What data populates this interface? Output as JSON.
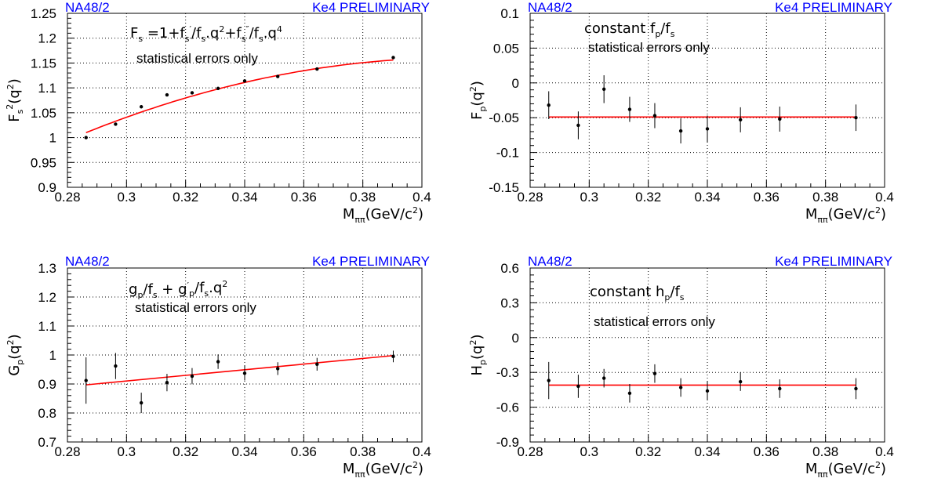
{
  "colors": {
    "fit": "#ff0000",
    "label_blue": "#0000ff",
    "grid": "#000000",
    "points": "#000000"
  },
  "chart_data": [
    {
      "type": "scatter",
      "experiment_label": "NA48/2",
      "status_label": "Ke4 PRELIMINARY",
      "formula": "Fs=1+fs'/fs.q2+fs''/fs.q4",
      "note": "statistical errors only",
      "xlabel": "Mππ(GeV/c2)",
      "ylabel": "Fs2(q2)",
      "xlim": [
        0.28,
        0.4
      ],
      "ylim": [
        0.9,
        1.25
      ],
      "xticks": [
        "0.28",
        "0.3",
        "0.32",
        "0.34",
        "0.36",
        "0.38",
        "0.4"
      ],
      "yticks": [
        "0.9",
        "0.95",
        "1",
        "1.05",
        "1.1",
        "1.15",
        "1.2",
        "1.25"
      ],
      "grid": true,
      "points": {
        "x": [
          0.2863,
          0.2963,
          0.305,
          0.3137,
          0.3222,
          0.331,
          0.34,
          0.3512,
          0.3645,
          0.3903
        ],
        "y": [
          1.0,
          1.027,
          1.062,
          1.086,
          1.09,
          1.099,
          1.114,
          1.123,
          1.138,
          1.161
        ],
        "err": [
          0.003,
          0.003,
          0.003,
          0.003,
          0.003,
          0.003,
          0.003,
          0.003,
          0.003,
          0.003
        ]
      },
      "fit": {
        "type": "quadratic",
        "x": [
          0.2863,
          0.3379,
          0.3903
        ],
        "y": [
          1.01,
          1.108,
          1.156
        ]
      }
    },
    {
      "type": "scatter",
      "experiment_label": "NA48/2",
      "status_label": "Ke4 PRELIMINARY",
      "formula": "constant fp/fs",
      "note": "statistical errors only",
      "xlabel": "Mππ(GeV/c2)",
      "ylabel": "Fp(q2)",
      "xlim": [
        0.28,
        0.4
      ],
      "ylim": [
        -0.15,
        0.1
      ],
      "xticks": [
        "0.28",
        "0.3",
        "0.32",
        "0.34",
        "0.36",
        "0.38",
        "0.4"
      ],
      "yticks": [
        "-0.15",
        "-0.1",
        "-0.05",
        "0",
        "0.05",
        "0.1"
      ],
      "grid": true,
      "points": {
        "x": [
          0.2863,
          0.2963,
          0.305,
          0.3137,
          0.3222,
          0.331,
          0.34,
          0.3512,
          0.3645,
          0.3903
        ],
        "y": [
          -0.032,
          -0.061,
          -0.009,
          -0.038,
          -0.047,
          -0.069,
          -0.066,
          -0.053,
          -0.052,
          -0.05
        ],
        "err": [
          0.02,
          0.02,
          0.02,
          0.018,
          0.018,
          0.018,
          0.019,
          0.018,
          0.018,
          0.019
        ]
      },
      "fit": {
        "type": "constant",
        "x": [
          0.2863,
          0.3903
        ],
        "y": [
          -0.049,
          -0.049
        ]
      }
    },
    {
      "type": "scatter",
      "experiment_label": "NA48/2",
      "status_label": "Ke4 PRELIMINARY",
      "formula": "gp/fs + gp'/fs.q2",
      "note": "statistical errors only",
      "xlabel": "Mππ(GeV/c2)",
      "ylabel": "Gp(q2)",
      "xlim": [
        0.28,
        0.4
      ],
      "ylim": [
        0.7,
        1.3
      ],
      "xticks": [
        "0.28",
        "0.3",
        "0.32",
        "0.34",
        "0.36",
        "0.38",
        "0.4"
      ],
      "yticks": [
        "0.7",
        "0.8",
        "0.9",
        "1",
        "1.1",
        "1.2",
        "1.3"
      ],
      "grid": true,
      "points": {
        "x": [
          0.2863,
          0.2963,
          0.305,
          0.3137,
          0.3222,
          0.331,
          0.34,
          0.3512,
          0.3645,
          0.3903
        ],
        "y": [
          0.912,
          0.962,
          0.835,
          0.905,
          0.927,
          0.977,
          0.937,
          0.953,
          0.968,
          0.995
        ],
        "err": [
          0.08,
          0.045,
          0.035,
          0.03,
          0.028,
          0.025,
          0.025,
          0.022,
          0.022,
          0.02
        ]
      },
      "fit": {
        "type": "linear",
        "x": [
          0.2863,
          0.3903
        ],
        "y": [
          0.897,
          0.998
        ]
      }
    },
    {
      "type": "scatter",
      "experiment_label": "NA48/2",
      "status_label": "Ke4 PRELIMINARY",
      "formula": "constant hp/fs",
      "note": "statistical errors only",
      "xlabel": "Mππ(GeV/c2)",
      "ylabel": "Hp(q2)",
      "xlim": [
        0.28,
        0.4
      ],
      "ylim": [
        -0.9,
        0.6
      ],
      "xticks": [
        "0.28",
        "0.3",
        "0.32",
        "0.34",
        "0.36",
        "0.38",
        "0.4"
      ],
      "yticks": [
        "-0.9",
        "-0.6",
        "-0.3",
        "0",
        "0.3",
        "0.6"
      ],
      "grid": true,
      "points": {
        "x": [
          0.2863,
          0.2963,
          0.305,
          0.3137,
          0.3222,
          0.331,
          0.34,
          0.3512,
          0.3645,
          0.3903
        ],
        "y": [
          -0.37,
          -0.42,
          -0.35,
          -0.48,
          -0.31,
          -0.43,
          -0.46,
          -0.38,
          -0.44,
          -0.44
        ],
        "err": [
          0.16,
          0.1,
          0.08,
          0.08,
          0.08,
          0.08,
          0.08,
          0.08,
          0.08,
          0.09
        ]
      },
      "fit": {
        "type": "constant",
        "x": [
          0.2863,
          0.3903
        ],
        "y": [
          -0.41,
          -0.41
        ]
      }
    }
  ]
}
